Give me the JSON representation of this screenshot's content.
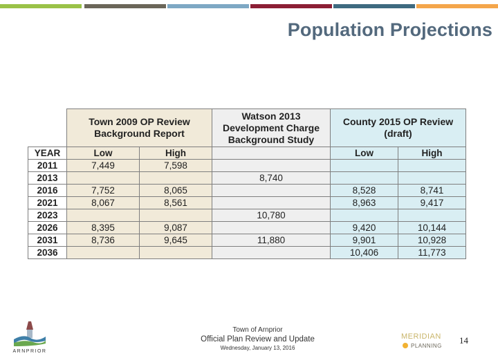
{
  "slide": {
    "title": "Population Projections",
    "accent_colors": [
      "#9ac248",
      "#6b6659",
      "#7ea8c4",
      "#8c1f35",
      "#3e6a80",
      "#f4a64b"
    ]
  },
  "table": {
    "groups": {
      "town": "Town 2009 OP Review Background Report",
      "watson": "Watson 2013 Development Charge Background Study",
      "county": "County 2015 OP Review (draft)"
    },
    "subheaders": {
      "year": "YEAR",
      "town_low": "Low",
      "town_high": "High",
      "county_low": "Low",
      "county_high": "High"
    },
    "rows": [
      {
        "year": "2011",
        "town_low": "7,449",
        "town_high": "7,598",
        "watson": "",
        "county_low": "",
        "county_high": ""
      },
      {
        "year": "2013",
        "town_low": "",
        "town_high": "",
        "watson": "8,740",
        "county_low": "",
        "county_high": ""
      },
      {
        "year": "2016",
        "town_low": "7,752",
        "town_high": "8,065",
        "watson": "",
        "county_low": "8,528",
        "county_high": "8,741"
      },
      {
        "year": "2021",
        "town_low": "8,067",
        "town_high": "8,561",
        "watson": "",
        "county_low": "8,963",
        "county_high": "9,417"
      },
      {
        "year": "2023",
        "town_low": "",
        "town_high": "",
        "watson": "10,780",
        "county_low": "",
        "county_high": ""
      },
      {
        "year": "2026",
        "town_low": "8,395",
        "town_high": "9,087",
        "watson": "",
        "county_low": "9,420",
        "county_high": "10,144"
      },
      {
        "year": "2031",
        "town_low": "8,736",
        "town_high": "9,645",
        "watson": "11,880",
        "county_low": "9,901",
        "county_high": "10,928"
      },
      {
        "year": "2036",
        "town_low": "",
        "town_high": "",
        "watson": "",
        "county_low": "10,406",
        "county_high": "11,773"
      }
    ]
  },
  "footer": {
    "line1": "Town of Arnprior",
    "line2": "Official Plan Review and Update",
    "line3": "Wednesday, January 13, 2016",
    "page_number": "14",
    "logo_left_text": "ARNPRIOR",
    "logo_right_line1": "MERIDIAN",
    "logo_right_line2": "PLANNING"
  }
}
